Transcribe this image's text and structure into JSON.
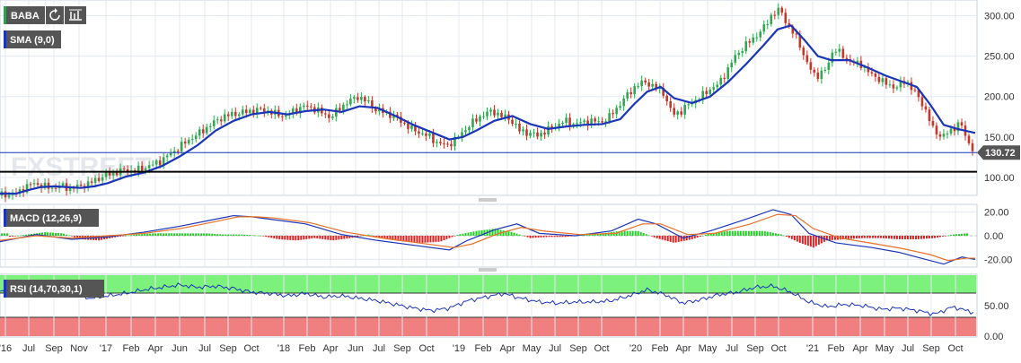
{
  "toolbar": {
    "symbol": "BABA",
    "refresh_icon": "refresh-icon",
    "settings_icon": "chart-settings-icon"
  },
  "watermark": "FXSTREET",
  "colors": {
    "candle_up": "#2fa84f",
    "candle_down": "#c0392b",
    "sma": "#1a35b8",
    "macd_line": "#1a35b8",
    "signal_line": "#e8722a",
    "hist_up": "#22cc22",
    "hist_down": "#dd2222",
    "rsi_line": "#1a35b8",
    "rsi_overbought": "#7cf27c",
    "rsi_oversold": "#f08080",
    "tag_bg": "#555555"
  },
  "chart_data": [
    {
      "type": "candlestick",
      "title": "",
      "indicator_label": "SMA (9,0)",
      "last_price": 130.72,
      "horizontal_line": 107,
      "ylim": [
        80,
        315
      ],
      "y_ticks": [
        "100.00",
        "150.00",
        "200.00",
        "250.00",
        "300.00"
      ],
      "x_labels": [
        "'16",
        "Jul",
        "Sep",
        "Nov",
        "'17",
        "Feb",
        "Apr",
        "Jun",
        "Jul",
        "Sep",
        "Oct",
        "'18",
        "Feb",
        "Apr",
        "Jun",
        "Jul",
        "Sep",
        "Oct",
        "'19",
        "Feb",
        "Apr",
        "May",
        "Jul",
        "Sep",
        "Oct",
        "'20",
        "Feb",
        "Apr",
        "May",
        "Jul",
        "Sep",
        "Oct",
        "'21",
        "Feb",
        "Apr",
        "May",
        "Jul",
        "Sep",
        "Oct"
      ],
      "close_path": [
        [
          0,
          78
        ],
        [
          18,
          80
        ],
        [
          28,
          88
        ],
        [
          38,
          93
        ],
        [
          48,
          89
        ],
        [
          58,
          87
        ],
        [
          68,
          90
        ],
        [
          78,
          86
        ],
        [
          88,
          89
        ],
        [
          98,
          92
        ],
        [
          108,
          98
        ],
        [
          118,
          103
        ],
        [
          128,
          106
        ],
        [
          138,
          109
        ],
        [
          148,
          108
        ],
        [
          158,
          111
        ],
        [
          168,
          115
        ],
        [
          178,
          120
        ],
        [
          188,
          128
        ],
        [
          198,
          136
        ],
        [
          208,
          145
        ],
        [
          218,
          152
        ],
        [
          228,
          160
        ],
        [
          238,
          168
        ],
        [
          248,
          175
        ],
        [
          258,
          178
        ],
        [
          268,
          180
        ],
        [
          278,
          182
        ],
        [
          288,
          184
        ],
        [
          298,
          182
        ],
        [
          308,
          178
        ],
        [
          318,
          176
        ],
        [
          328,
          183
        ],
        [
          338,
          188
        ],
        [
          348,
          186
        ],
        [
          358,
          180
        ],
        [
          368,
          174
        ],
        [
          378,
          186
        ],
        [
          388,
          194
        ],
        [
          398,
          200
        ],
        [
          408,
          194
        ],
        [
          418,
          184
        ],
        [
          428,
          180
        ],
        [
          438,
          176
        ],
        [
          448,
          168
        ],
        [
          458,
          160
        ],
        [
          468,
          155
        ],
        [
          478,
          150
        ],
        [
          488,
          142
        ],
        [
          498,
          140
        ],
        [
          508,
          148
        ],
        [
          518,
          160
        ],
        [
          528,
          170
        ],
        [
          538,
          178
        ],
        [
          548,
          182
        ],
        [
          558,
          176
        ],
        [
          568,
          172
        ],
        [
          578,
          158
        ],
        [
          588,
          155
        ],
        [
          598,
          152
        ],
        [
          608,
          158
        ],
        [
          618,
          164
        ],
        [
          628,
          170
        ],
        [
          638,
          166
        ],
        [
          648,
          168
        ],
        [
          658,
          170
        ],
        [
          668,
          168
        ],
        [
          678,
          175
        ],
        [
          688,
          188
        ],
        [
          698,
          202
        ],
        [
          708,
          214
        ],
        [
          718,
          218
        ],
        [
          728,
          212
        ],
        [
          738,
          205
        ],
        [
          748,
          178
        ],
        [
          758,
          182
        ],
        [
          768,
          192
        ],
        [
          778,
          198
        ],
        [
          788,
          208
        ],
        [
          798,
          214
        ],
        [
          808,
          230
        ],
        [
          818,
          250
        ],
        [
          828,
          262
        ],
        [
          838,
          272
        ],
        [
          848,
          282
        ],
        [
          858,
          300
        ],
        [
          868,
          308
        ],
        [
          878,
          285
        ],
        [
          888,
          270
        ],
        [
          898,
          240
        ],
        [
          908,
          225
        ],
        [
          918,
          232
        ],
        [
          928,
          260
        ],
        [
          938,
          250
        ],
        [
          948,
          242
        ],
        [
          958,
          240
        ],
        [
          968,
          228
        ],
        [
          978,
          222
        ],
        [
          988,
          214
        ],
        [
          998,
          212
        ],
        [
          1008,
          220
        ],
        [
          1018,
          205
        ],
        [
          1028,
          188
        ],
        [
          1038,
          160
        ],
        [
          1048,
          150
        ],
        [
          1058,
          158
        ],
        [
          1068,
          168
        ],
        [
          1078,
          142
        ],
        [
          1085,
          131
        ]
      ],
      "sma_path": [
        [
          0,
          80
        ],
        [
          18,
          80
        ],
        [
          30,
          84
        ],
        [
          45,
          88
        ],
        [
          60,
          89
        ],
        [
          75,
          88
        ],
        [
          90,
          87
        ],
        [
          105,
          89
        ],
        [
          120,
          93
        ],
        [
          140,
          101
        ],
        [
          160,
          106
        ],
        [
          180,
          114
        ],
        [
          200,
          126
        ],
        [
          220,
          140
        ],
        [
          240,
          158
        ],
        [
          260,
          170
        ],
        [
          280,
          178
        ],
        [
          300,
          181
        ],
        [
          320,
          178
        ],
        [
          340,
          182
        ],
        [
          360,
          184
        ],
        [
          380,
          181
        ],
        [
          400,
          188
        ],
        [
          420,
          186
        ],
        [
          440,
          176
        ],
        [
          460,
          165
        ],
        [
          480,
          156
        ],
        [
          500,
          147
        ],
        [
          515,
          150
        ],
        [
          530,
          158
        ],
        [
          550,
          170
        ],
        [
          570,
          176
        ],
        [
          590,
          166
        ],
        [
          610,
          160
        ],
        [
          630,
          163
        ],
        [
          650,
          165
        ],
        [
          670,
          166
        ],
        [
          690,
          172
        ],
        [
          705,
          190
        ],
        [
          720,
          206
        ],
        [
          735,
          212
        ],
        [
          750,
          198
        ],
        [
          770,
          192
        ],
        [
          790,
          200
        ],
        [
          810,
          218
        ],
        [
          830,
          240
        ],
        [
          850,
          264
        ],
        [
          865,
          283
        ],
        [
          880,
          288
        ],
        [
          895,
          270
        ],
        [
          910,
          250
        ],
        [
          925,
          245
        ],
        [
          945,
          245
        ],
        [
          965,
          236
        ],
        [
          985,
          226
        ],
        [
          1005,
          218
        ],
        [
          1020,
          212
        ],
        [
          1035,
          190
        ],
        [
          1050,
          165
        ],
        [
          1065,
          160
        ],
        [
          1085,
          155
        ]
      ]
    },
    {
      "type": "line",
      "indicator_label": "MACD (12,26,9)",
      "ylim": [
        -25,
        25
      ],
      "y_ticks": [
        "20.00",
        "0.00",
        "-20.00"
      ],
      "macd_path": [
        [
          0,
          -5
        ],
        [
          40,
          1
        ],
        [
          80,
          -3
        ],
        [
          120,
          -1
        ],
        [
          160,
          3
        ],
        [
          200,
          8
        ],
        [
          240,
          14
        ],
        [
          260,
          17
        ],
        [
          280,
          16
        ],
        [
          300,
          14
        ],
        [
          340,
          10
        ],
        [
          380,
          1
        ],
        [
          420,
          -4
        ],
        [
          460,
          -8
        ],
        [
          500,
          -12
        ],
        [
          520,
          -4
        ],
        [
          550,
          5
        ],
        [
          575,
          10
        ],
        [
          600,
          2
        ],
        [
          640,
          0
        ],
        [
          680,
          4
        ],
        [
          710,
          14
        ],
        [
          730,
          10
        ],
        [
          760,
          -2
        ],
        [
          790,
          4
        ],
        [
          830,
          14
        ],
        [
          860,
          22
        ],
        [
          880,
          18
        ],
        [
          900,
          2
        ],
        [
          930,
          -6
        ],
        [
          970,
          -10
        ],
        [
          1000,
          -14
        ],
        [
          1030,
          -20
        ],
        [
          1050,
          -24
        ],
        [
          1070,
          -18
        ],
        [
          1085,
          -20
        ]
      ],
      "signal_path": [
        [
          0,
          -4
        ],
        [
          40,
          0
        ],
        [
          80,
          -2
        ],
        [
          120,
          0
        ],
        [
          160,
          2
        ],
        [
          200,
          6
        ],
        [
          240,
          12
        ],
        [
          265,
          16
        ],
        [
          285,
          16
        ],
        [
          305,
          15
        ],
        [
          345,
          11
        ],
        [
          385,
          3
        ],
        [
          425,
          -2
        ],
        [
          465,
          -6
        ],
        [
          505,
          -10
        ],
        [
          525,
          -7
        ],
        [
          555,
          2
        ],
        [
          580,
          7
        ],
        [
          605,
          4
        ],
        [
          645,
          1
        ],
        [
          685,
          2
        ],
        [
          715,
          10
        ],
        [
          735,
          10
        ],
        [
          765,
          1
        ],
        [
          795,
          2
        ],
        [
          835,
          10
        ],
        [
          865,
          18
        ],
        [
          885,
          17
        ],
        [
          905,
          6
        ],
        [
          935,
          -2
        ],
        [
          975,
          -7
        ],
        [
          1005,
          -11
        ],
        [
          1035,
          -16
        ],
        [
          1055,
          -21
        ],
        [
          1075,
          -19
        ],
        [
          1085,
          -19
        ]
      ],
      "histogram": [
        [
          10,
          -1
        ],
        [
          30,
          1
        ],
        [
          50,
          3
        ],
        [
          70,
          2
        ],
        [
          90,
          -3
        ],
        [
          110,
          -4
        ],
        [
          130,
          -1
        ],
        [
          150,
          1
        ],
        [
          170,
          2
        ],
        [
          190,
          2
        ],
        [
          210,
          2
        ],
        [
          230,
          2
        ],
        [
          250,
          1
        ],
        [
          270,
          1
        ],
        [
          290,
          0
        ],
        [
          310,
          -3
        ],
        [
          330,
          -4
        ],
        [
          350,
          -2
        ],
        [
          370,
          -4
        ],
        [
          390,
          -2
        ],
        [
          410,
          1
        ],
        [
          430,
          -3
        ],
        [
          450,
          -5
        ],
        [
          470,
          -6
        ],
        [
          490,
          -5
        ],
        [
          510,
          1
        ],
        [
          530,
          4
        ],
        [
          550,
          6
        ],
        [
          570,
          3
        ],
        [
          590,
          -2
        ],
        [
          610,
          -1
        ],
        [
          630,
          -1
        ],
        [
          650,
          1
        ],
        [
          670,
          2
        ],
        [
          690,
          4
        ],
        [
          710,
          4
        ],
        [
          730,
          -2
        ],
        [
          750,
          -6
        ],
        [
          770,
          -3
        ],
        [
          790,
          2
        ],
        [
          810,
          4
        ],
        [
          830,
          4
        ],
        [
          850,
          4
        ],
        [
          870,
          1
        ],
        [
          890,
          -6
        ],
        [
          905,
          -10
        ],
        [
          920,
          -4
        ],
        [
          940,
          -3
        ],
        [
          960,
          -2
        ],
        [
          980,
          -2
        ],
        [
          1000,
          -3
        ],
        [
          1020,
          -3
        ],
        [
          1040,
          -2
        ],
        [
          1060,
          1
        ],
        [
          1075,
          2
        ]
      ]
    },
    {
      "type": "line",
      "indicator_label": "RSI (14,70,30,1)",
      "ylim": [
        0,
        100
      ],
      "y_ticks": [
        "50.00",
        "0.00"
      ],
      "overbought": 70,
      "oversold": 30,
      "rsi_path": [
        [
          0,
          72
        ],
        [
          20,
          78
        ],
        [
          40,
          74
        ],
        [
          60,
          70
        ],
        [
          80,
          68
        ],
        [
          100,
          62
        ],
        [
          120,
          66
        ],
        [
          140,
          70
        ],
        [
          160,
          76
        ],
        [
          180,
          80
        ],
        [
          200,
          84
        ],
        [
          220,
          80
        ],
        [
          240,
          82
        ],
        [
          260,
          78
        ],
        [
          280,
          72
        ],
        [
          300,
          70
        ],
        [
          320,
          66
        ],
        [
          340,
          70
        ],
        [
          360,
          64
        ],
        [
          380,
          66
        ],
        [
          400,
          62
        ],
        [
          420,
          58
        ],
        [
          440,
          52
        ],
        [
          460,
          46
        ],
        [
          480,
          42
        ],
        [
          500,
          46
        ],
        [
          520,
          58
        ],
        [
          540,
          64
        ],
        [
          560,
          70
        ],
        [
          580,
          62
        ],
        [
          600,
          56
        ],
        [
          620,
          54
        ],
        [
          640,
          56
        ],
        [
          660,
          56
        ],
        [
          680,
          58
        ],
        [
          700,
          66
        ],
        [
          720,
          76
        ],
        [
          740,
          68
        ],
        [
          760,
          54
        ],
        [
          780,
          60
        ],
        [
          800,
          68
        ],
        [
          820,
          72
        ],
        [
          840,
          80
        ],
        [
          860,
          82
        ],
        [
          880,
          72
        ],
        [
          900,
          56
        ],
        [
          920,
          48
        ],
        [
          940,
          52
        ],
        [
          960,
          50
        ],
        [
          980,
          44
        ],
        [
          1000,
          46
        ],
        [
          1020,
          42
        ],
        [
          1040,
          36
        ],
        [
          1060,
          48
        ],
        [
          1075,
          42
        ],
        [
          1085,
          38
        ]
      ]
    }
  ]
}
